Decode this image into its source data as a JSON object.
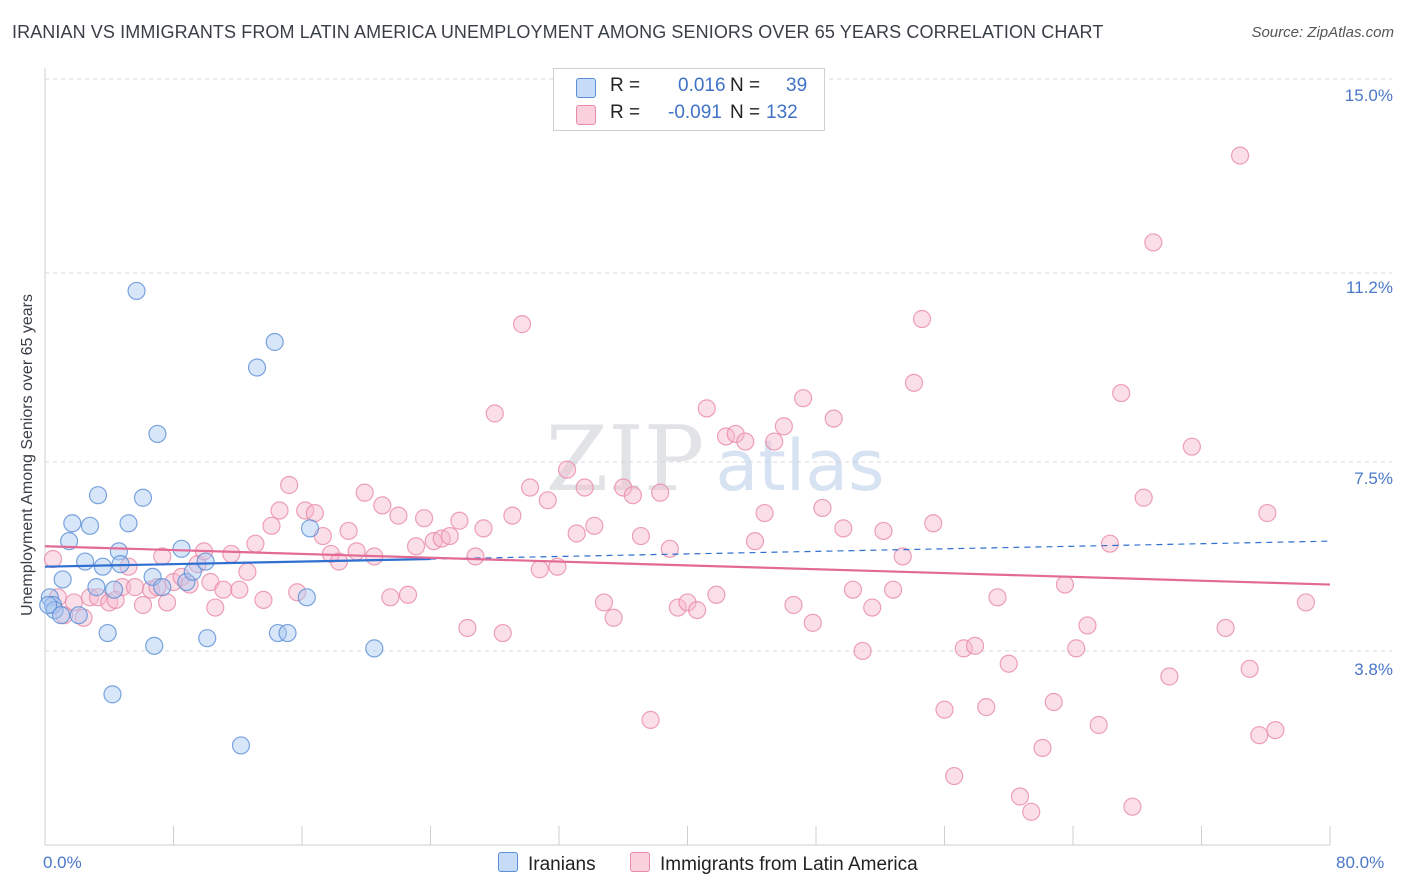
{
  "header": {
    "title": "IRANIAN VS IMMIGRANTS FROM LATIN AMERICA UNEMPLOYMENT AMONG SENIORS OVER 65 YEARS CORRELATION CHART",
    "source": "Source: ZipAtlas.com"
  },
  "watermark": {
    "zip": "ZIP",
    "atlas": "atlas"
  },
  "legend": {
    "r_label": "R =",
    "n_label": "N =",
    "series": [
      {
        "r": "0.016",
        "n": "39",
        "color": "#a9c8f2"
      },
      {
        "r": "-0.091",
        "n": "132",
        "color": "#f6b8cb"
      }
    ]
  },
  "bottom_legend": {
    "iranians": "Iranians",
    "latin": "Immigrants from Latin America"
  },
  "colors": {
    "iranian_fill": "#a9c8f2",
    "iranian_stroke": "#5b8fd6",
    "iranian_line": "#2f6fd0",
    "latin_fill": "#f6b8cb",
    "latin_stroke": "#e88aa8",
    "latin_line": "#e36a95",
    "axis_text": "#4a78c8"
  },
  "chart_data": {
    "type": "scatter",
    "title": "IRANIAN VS IMMIGRANTS FROM LATIN AMERICA UNEMPLOYMENT AMONG SENIORS OVER 65 YEARS CORRELATION CHART",
    "xlabel": "",
    "ylabel": "Unemployment Among Seniors over 65 years",
    "xlim": [
      0,
      80
    ],
    "ylim": [
      0,
      15.5
    ],
    "x_tick_labels": [
      "0.0%",
      "80.0%"
    ],
    "y_ticks": [
      3.8,
      7.5,
      11.2,
      15.0
    ],
    "y_tick_labels": [
      "3.8%",
      "7.5%",
      "11.2%",
      "15.0%"
    ],
    "grid": "horizontal dashed",
    "legend_position": "top-center",
    "series": [
      {
        "name": "Iranians",
        "r": 0.016,
        "n": 39,
        "trend": {
          "x": [
            0,
            80
          ],
          "y": [
            5.45,
            5.95
          ],
          "solid_until": 24
        },
        "points": [
          [
            0.3,
            4.85
          ],
          [
            0.5,
            4.7
          ],
          [
            0.6,
            4.6
          ],
          [
            1.0,
            4.5
          ],
          [
            1.1,
            5.2
          ],
          [
            1.5,
            5.95
          ],
          [
            1.7,
            6.3
          ],
          [
            2.1,
            4.5
          ],
          [
            2.5,
            5.55
          ],
          [
            2.8,
            6.25
          ],
          [
            3.2,
            5.05
          ],
          [
            3.3,
            6.85
          ],
          [
            3.6,
            5.45
          ],
          [
            3.9,
            4.15
          ],
          [
            4.2,
            2.95
          ],
          [
            4.3,
            5.0
          ],
          [
            4.6,
            5.75
          ],
          [
            4.7,
            5.5
          ],
          [
            5.2,
            6.3
          ],
          [
            5.7,
            10.85
          ],
          [
            6.1,
            6.8
          ],
          [
            6.7,
            5.25
          ],
          [
            6.8,
            3.9
          ],
          [
            7.0,
            8.05
          ],
          [
            7.3,
            5.05
          ],
          [
            8.5,
            5.8
          ],
          [
            8.8,
            5.15
          ],
          [
            9.2,
            5.35
          ],
          [
            10.0,
            5.55
          ],
          [
            10.1,
            4.05
          ],
          [
            12.2,
            1.95
          ],
          [
            13.2,
            9.35
          ],
          [
            14.3,
            9.85
          ],
          [
            14.5,
            4.15
          ],
          [
            15.1,
            4.15
          ],
          [
            16.3,
            4.85
          ],
          [
            16.5,
            6.2
          ],
          [
            20.5,
            3.85
          ],
          [
            0.2,
            4.7
          ]
        ]
      },
      {
        "name": "Immigrants from Latin America",
        "r": -0.091,
        "n": 132,
        "trend": {
          "x": [
            0,
            80
          ],
          "y": [
            5.85,
            5.1
          ]
        },
        "points": [
          [
            0.5,
            5.6
          ],
          [
            0.8,
            4.85
          ],
          [
            1.2,
            4.5
          ],
          [
            1.8,
            4.75
          ],
          [
            2.4,
            4.45
          ],
          [
            2.8,
            4.85
          ],
          [
            3.3,
            4.85
          ],
          [
            4.0,
            4.75
          ],
          [
            4.4,
            4.8
          ],
          [
            4.8,
            5.05
          ],
          [
            5.2,
            5.45
          ],
          [
            5.6,
            5.05
          ],
          [
            6.1,
            4.7
          ],
          [
            6.6,
            5.0
          ],
          [
            7.0,
            5.05
          ],
          [
            7.3,
            5.65
          ],
          [
            7.6,
            4.75
          ],
          [
            8.0,
            5.15
          ],
          [
            8.5,
            5.25
          ],
          [
            9.0,
            5.1
          ],
          [
            9.5,
            5.5
          ],
          [
            9.9,
            5.75
          ],
          [
            10.3,
            5.15
          ],
          [
            10.6,
            4.65
          ],
          [
            11.1,
            5.0
          ],
          [
            11.6,
            5.7
          ],
          [
            12.1,
            5.0
          ],
          [
            12.6,
            5.35
          ],
          [
            13.1,
            5.9
          ],
          [
            13.6,
            4.8
          ],
          [
            14.1,
            6.25
          ],
          [
            14.6,
            6.55
          ],
          [
            15.2,
            7.05
          ],
          [
            15.7,
            4.95
          ],
          [
            16.2,
            6.55
          ],
          [
            16.8,
            6.5
          ],
          [
            17.3,
            6.05
          ],
          [
            17.8,
            5.7
          ],
          [
            18.3,
            5.55
          ],
          [
            18.9,
            6.15
          ],
          [
            19.4,
            5.75
          ],
          [
            19.9,
            6.9
          ],
          [
            20.5,
            5.65
          ],
          [
            21.0,
            6.65
          ],
          [
            21.5,
            4.85
          ],
          [
            22.0,
            6.45
          ],
          [
            22.6,
            4.9
          ],
          [
            23.1,
            5.85
          ],
          [
            23.6,
            6.4
          ],
          [
            24.2,
            5.95
          ],
          [
            24.7,
            6.0
          ],
          [
            25.2,
            6.05
          ],
          [
            25.8,
            6.35
          ],
          [
            26.3,
            4.25
          ],
          [
            26.8,
            5.65
          ],
          [
            27.3,
            6.2
          ],
          [
            28.0,
            8.45
          ],
          [
            28.5,
            4.15
          ],
          [
            29.1,
            6.45
          ],
          [
            29.7,
            10.2
          ],
          [
            30.2,
            7.0
          ],
          [
            30.8,
            5.4
          ],
          [
            31.3,
            6.75
          ],
          [
            31.9,
            5.45
          ],
          [
            32.5,
            7.35
          ],
          [
            33.1,
            6.1
          ],
          [
            33.6,
            7.0
          ],
          [
            34.2,
            6.25
          ],
          [
            34.8,
            4.75
          ],
          [
            35.4,
            4.45
          ],
          [
            36.0,
            7.0
          ],
          [
            36.6,
            6.85
          ],
          [
            37.1,
            6.05
          ],
          [
            37.7,
            2.45
          ],
          [
            38.3,
            6.9
          ],
          [
            38.9,
            5.8
          ],
          [
            39.4,
            4.65
          ],
          [
            40.0,
            4.75
          ],
          [
            40.6,
            4.6
          ],
          [
            41.2,
            8.55
          ],
          [
            41.8,
            4.9
          ],
          [
            42.4,
            8.0
          ],
          [
            43.0,
            8.05
          ],
          [
            43.6,
            7.9
          ],
          [
            44.2,
            5.95
          ],
          [
            44.8,
            6.5
          ],
          [
            45.4,
            7.9
          ],
          [
            46.0,
            8.2
          ],
          [
            46.6,
            4.7
          ],
          [
            47.2,
            8.75
          ],
          [
            47.8,
            4.35
          ],
          [
            48.4,
            6.6
          ],
          [
            49.1,
            8.35
          ],
          [
            49.7,
            6.2
          ],
          [
            50.3,
            5.0
          ],
          [
            50.9,
            3.8
          ],
          [
            51.5,
            4.65
          ],
          [
            52.2,
            6.15
          ],
          [
            52.8,
            5.0
          ],
          [
            53.4,
            5.65
          ],
          [
            54.1,
            9.05
          ],
          [
            54.6,
            10.3
          ],
          [
            55.3,
            6.3
          ],
          [
            56.0,
            2.65
          ],
          [
            56.6,
            1.35
          ],
          [
            57.2,
            3.85
          ],
          [
            57.9,
            3.9
          ],
          [
            58.6,
            2.7
          ],
          [
            59.3,
            4.85
          ],
          [
            60.0,
            3.55
          ],
          [
            60.7,
            0.95
          ],
          [
            61.4,
            0.65
          ],
          [
            62.1,
            1.9
          ],
          [
            62.8,
            2.8
          ],
          [
            63.5,
            5.1
          ],
          [
            64.2,
            3.85
          ],
          [
            64.9,
            4.3
          ],
          [
            65.6,
            2.35
          ],
          [
            66.3,
            5.9
          ],
          [
            67.0,
            8.85
          ],
          [
            67.7,
            0.75
          ],
          [
            68.4,
            6.8
          ],
          [
            69.0,
            11.8
          ],
          [
            70.0,
            3.3
          ],
          [
            71.4,
            7.8
          ],
          [
            73.5,
            4.25
          ],
          [
            74.4,
            13.5
          ],
          [
            75.0,
            3.45
          ],
          [
            75.6,
            2.15
          ],
          [
            76.1,
            6.5
          ],
          [
            76.6,
            2.25
          ],
          [
            78.5,
            4.75
          ]
        ]
      }
    ]
  }
}
